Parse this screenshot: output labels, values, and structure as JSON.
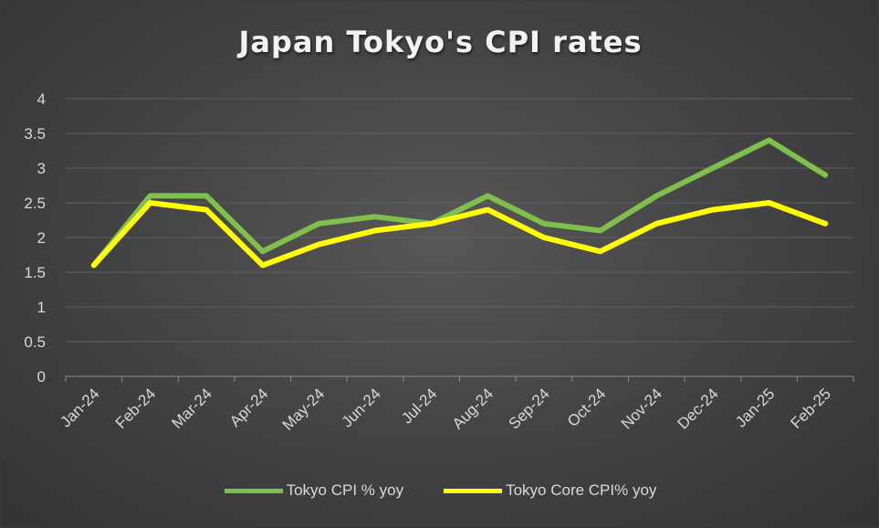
{
  "chart_data": {
    "type": "line",
    "title": "Japan Tokyo's CPI rates",
    "xlabel": "",
    "ylabel": "",
    "ylim": [
      0,
      4
    ],
    "yticks": [
      "0",
      "0.5",
      "1",
      "1.5",
      "2",
      "2.5",
      "3",
      "3.5",
      "4"
    ],
    "grid": true,
    "legend_position": "bottom",
    "categories": [
      "Jan-24",
      "Feb-24",
      "Mar-24",
      "Apr-24",
      "May-24",
      "Jun-24",
      "Jul-24",
      "Aug-24",
      "Sep-24",
      "Oct-24",
      "Nov-24",
      "Dec-24",
      "Jan-25",
      "Feb-25"
    ],
    "series": [
      {
        "name": "Tokyo CPI % yoy",
        "color": "#7fbf4d",
        "values": [
          1.6,
          2.6,
          2.6,
          1.8,
          2.2,
          2.3,
          2.2,
          2.6,
          2.2,
          2.1,
          2.6,
          3.0,
          3.4,
          2.9
        ]
      },
      {
        "name": "Tokyo Core CPI% yoy",
        "color": "#ffff00",
        "values": [
          1.6,
          2.5,
          2.4,
          1.6,
          1.9,
          2.1,
          2.2,
          2.4,
          2.0,
          1.8,
          2.2,
          2.4,
          2.5,
          2.2
        ]
      }
    ]
  }
}
